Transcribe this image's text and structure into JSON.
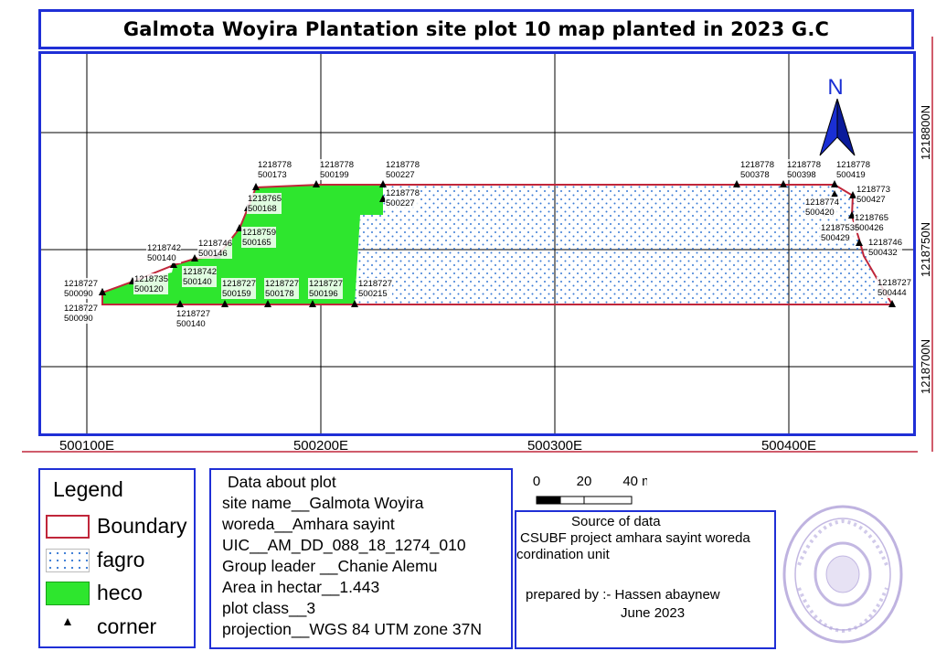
{
  "title": "Galmota Woyira Plantation site plot 10 map planted in 2023 G.C",
  "map": {
    "north_label": "N",
    "x_ticks": [
      "500100E",
      "500200E",
      "500300E",
      "500400E"
    ],
    "y_ticks": [
      "1218800N",
      "1218750N",
      "1218700N"
    ],
    "colors": {
      "boundary": "#c0263a",
      "heco": "#2ee62e",
      "fagro_dots": "#3a7bd5",
      "frame": "#1f2fd6",
      "north_arrow": "#1a2fd4"
    },
    "corners": [
      {
        "n": "1218727",
        "e": "500090"
      },
      {
        "n": "1218727",
        "e": "500090"
      },
      {
        "n": "1218735",
        "e": "500120"
      },
      {
        "n": "1218742",
        "e": "500140"
      },
      {
        "n": "1218742",
        "e": "500140"
      },
      {
        "n": "1218727",
        "e": "500140"
      },
      {
        "n": "1218746",
        "e": "500146"
      },
      {
        "n": "1218759",
        "e": "500165"
      },
      {
        "n": "1218765",
        "e": "500168"
      },
      {
        "n": "1218778",
        "e": "500173"
      },
      {
        "n": "1218778",
        "e": "500199"
      },
      {
        "n": "1218778",
        "e": "500227"
      },
      {
        "n": "1218778",
        "e": "500227"
      },
      {
        "n": "1218727",
        "e": "500159"
      },
      {
        "n": "1218727",
        "e": "500178"
      },
      {
        "n": "1218727",
        "e": "500196"
      },
      {
        "n": "1218727",
        "e": "500215"
      },
      {
        "n": "1218778",
        "e": "500378"
      },
      {
        "n": "1218778",
        "e": "500398"
      },
      {
        "n": "1218778",
        "e": "500419"
      },
      {
        "n": "1218774",
        "e": "500420"
      },
      {
        "n": "1218773",
        "e": "500427"
      },
      {
        "n": "1218765",
        "e": "500426"
      },
      {
        "n": "1218753",
        "e": "500429"
      },
      {
        "n": "1218746",
        "e": "500432"
      },
      {
        "n": "1218727",
        "e": "500444"
      }
    ]
  },
  "legend": {
    "title": "Legend",
    "items": [
      {
        "label": "Boundary"
      },
      {
        "label": "fagro"
      },
      {
        "label": "heco"
      },
      {
        "label": "corner"
      }
    ]
  },
  "scale": {
    "labels": [
      "0",
      "20",
      "40 m"
    ]
  },
  "plot_info": {
    "heading": "Data about plot",
    "lines": [
      "site name__Galmota Woyira",
      "woreda__Amhara sayint",
      "UIC__AM_DD_088_18_1274_010",
      "Group leader __Chanie Alemu",
      "Area in hectar__1.443",
      "plot class__3",
      "projection__WGS 84 UTM zone 37N"
    ]
  },
  "source": {
    "heading": "Source of data",
    "line1": "CSUBF project amhara sayint woreda",
    "line2": "cordination unit",
    "prepared": "prepared by :- Hassen abaynew",
    "date": "June 2023"
  }
}
